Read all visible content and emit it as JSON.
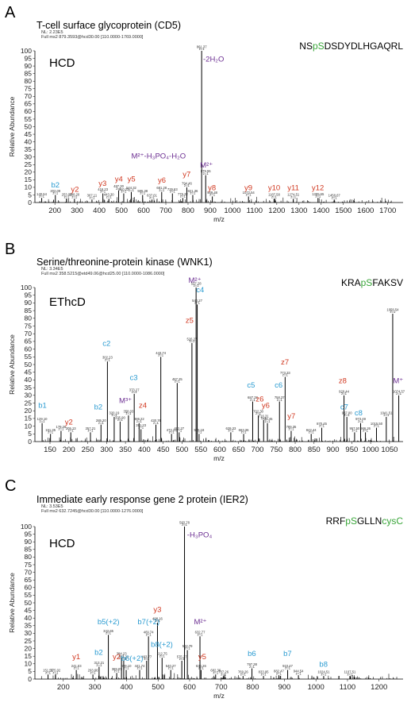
{
  "colors": {
    "b_c_ions": "#2a9bd1",
    "y_z_ions": "#d0361e",
    "precursor": "#6b2d91",
    "phospho": "#3aa63a",
    "seq": "#000000"
  },
  "chart_data": [
    {
      "type": "bar",
      "panel": "A",
      "title": "T-cell surface glycoprotein (CD5)",
      "nl": "NL: 2.23E5",
      "scan": "Full ms2 879.3593@hcd30.00 [110.0000-1769.0000]",
      "method": "HCD",
      "sequence": [
        {
          "t": "NS",
          "c": "seq"
        },
        {
          "t": "pS",
          "c": "phospho"
        },
        {
          "t": "DSDYDLHGAQRL",
          "c": "seq"
        }
      ],
      "xlabel": "m/z",
      "ylabel": "Relative Abundance",
      "xlim": [
        110,
        1769
      ],
      "ylim": [
        0,
        100
      ],
      "xticks": [
        200,
        300,
        400,
        500,
        600,
        700,
        800,
        900,
        1000,
        1100,
        1200,
        1300,
        1400,
        1500,
        1600,
        1700
      ],
      "yticks": [
        0,
        5,
        10,
        15,
        20,
        25,
        30,
        35,
        40,
        45,
        50,
        55,
        60,
        65,
        70,
        75,
        80,
        85,
        90,
        95,
        100
      ],
      "peaks": [
        {
          "x": 140.54,
          "y": 3,
          "label": "140.54"
        },
        {
          "x": 202.09,
          "y": 5,
          "label": "202.09"
        },
        {
          "x": 253.09,
          "y": 2.5,
          "label": "253.09"
        },
        {
          "x": 288.2,
          "y": 2.5,
          "label": "288.20"
        },
        {
          "x": 367.11,
          "y": 2,
          "label": "367.11"
        },
        {
          "x": 416.23,
          "y": 6,
          "label": "416.23"
        },
        {
          "x": 443.3,
          "y": 2.5,
          "label": "443.30"
        },
        {
          "x": 487.3,
          "y": 8,
          "label": "487.30"
        },
        {
          "x": 510.23,
          "y": 6,
          "label": "510.23"
        },
        {
          "x": 544.32,
          "y": 7,
          "label": "544.32"
        },
        {
          "x": 595.38,
          "y": 5,
          "label": "595.38"
        },
        {
          "x": 637.61,
          "y": 2,
          "label": "637.61"
        },
        {
          "x": 681.28,
          "y": 7,
          "label": "681.28"
        },
        {
          "x": 729.63,
          "y": 6,
          "label": "729.63"
        },
        {
          "x": 776.32,
          "y": 3,
          "label": "776.32"
        },
        {
          "x": 794.46,
          "y": 10,
          "label": "794.46"
        },
        {
          "x": 821.36,
          "y": 5,
          "label": "821.36"
        },
        {
          "x": 861.37,
          "y": 100,
          "label": "861.37"
        },
        {
          "x": 879.55,
          "y": 18,
          "label": "879.55"
        },
        {
          "x": 909.48,
          "y": 4,
          "label": "909.48"
        },
        {
          "x": 1072.54,
          "y": 4,
          "label": "1072.54"
        },
        {
          "x": 1187.58,
          "y": 2.5,
          "label": "1187.58"
        },
        {
          "x": 1274.51,
          "y": 2.5,
          "label": "1274.51"
        },
        {
          "x": 1385.65,
          "y": 3,
          "label": "1385.65"
        },
        {
          "x": 1458.67,
          "y": 2,
          "label": "1458.67"
        }
      ],
      "annotations": [
        {
          "t": "b2",
          "x": 202,
          "y": 10,
          "c": "b_c_ions"
        },
        {
          "t": "y2",
          "x": 290,
          "y": 7,
          "c": "y_z_ions"
        },
        {
          "t": "y3",
          "x": 415,
          "y": 11,
          "c": "y_z_ions"
        },
        {
          "t": "y4",
          "x": 488,
          "y": 14,
          "c": "y_z_ions"
        },
        {
          "t": "y5",
          "x": 545,
          "y": 14,
          "c": "y_z_ions"
        },
        {
          "t": "y6",
          "x": 682,
          "y": 13,
          "c": "y_z_ions"
        },
        {
          "t": "y7",
          "x": 794,
          "y": 17,
          "c": "y_z_ions"
        },
        {
          "t": "y8",
          "x": 908,
          "y": 8,
          "c": "y_z_ions"
        },
        {
          "t": "y9",
          "x": 1072,
          "y": 8,
          "c": "y_z_ions"
        },
        {
          "t": "y10",
          "x": 1188,
          "y": 8,
          "c": "y_z_ions"
        },
        {
          "t": "y11",
          "x": 1274,
          "y": 8,
          "c": "y_z_ions"
        },
        {
          "t": "y12",
          "x": 1385,
          "y": 8,
          "c": "y_z_ions"
        },
        {
          "t": "M²⁺",
          "x": 883,
          "y": 23,
          "c": "precursor"
        },
        {
          "t": "M²⁺-H₃PO₄-H₂O",
          "x": 790,
          "y": 29,
          "c": "precursor",
          "anchor": "end"
        },
        {
          "t": "-2H₂O",
          "x": 868,
          "y": 93,
          "c": "precursor",
          "anchor": "start"
        }
      ]
    },
    {
      "type": "bar",
      "panel": "B",
      "title": "Serine/threonine-protein kinase (WNK1)",
      "nl": "NL: 3.34E5",
      "scan": "Full ms2 358.5215@etd49.06@hcd25.00 [110.0000-1086.0000]",
      "method": "EThcD",
      "sequence": [
        {
          "t": "KRA",
          "c": "seq"
        },
        {
          "t": "pS",
          "c": "phospho"
        },
        {
          "t": "FAKSV",
          "c": "seq"
        }
      ],
      "xlabel": "m/z",
      "ylabel": "Relative Abundance",
      "xlim": [
        110,
        1086
      ],
      "ylim": [
        0,
        100
      ],
      "xticks": [
        150,
        200,
        250,
        300,
        350,
        400,
        450,
        500,
        550,
        600,
        650,
        700,
        750,
        800,
        850,
        900,
        950,
        1000,
        1050
      ],
      "yticks": [
        0,
        5,
        10,
        15,
        20,
        25,
        30,
        35,
        40,
        45,
        50,
        55,
        60,
        65,
        70,
        75,
        80,
        85,
        90,
        95,
        100
      ],
      "peaks": [
        {
          "x": 129.1,
          "y": 12,
          "label": "129.10"
        },
        {
          "x": 151.35,
          "y": 5,
          "label": "151.35"
        },
        {
          "x": 179.26,
          "y": 7,
          "label": "179.26"
        },
        {
          "x": 205.13,
          "y": 6,
          "label": "205.13"
        },
        {
          "x": 257.21,
          "y": 6,
          "label": "257.21"
        },
        {
          "x": 285.2,
          "y": 11,
          "label": "285.20"
        },
        {
          "x": 302.23,
          "y": 52,
          "label": "302.23"
        },
        {
          "x": 320.19,
          "y": 16,
          "label": "320.19"
        },
        {
          "x": 335.9,
          "y": 13,
          "label": "335.90"
        },
        {
          "x": 358.03,
          "y": 17,
          "label": "358.03"
        },
        {
          "x": 373.27,
          "y": 31,
          "label": "373.27"
        },
        {
          "x": 386.22,
          "y": 12,
          "label": "386.22"
        },
        {
          "x": 391.23,
          "y": 8,
          "label": "391.23"
        },
        {
          "x": 430.76,
          "y": 11,
          "label": "430.76"
        },
        {
          "x": 443.74,
          "y": 55,
          "label": "443.74"
        },
        {
          "x": 472.23,
          "y": 5,
          "label": "472.23"
        },
        {
          "x": 487.25,
          "y": 38,
          "label": "487.25"
        },
        {
          "x": 492.27,
          "y": 6,
          "label": "492.27"
        },
        {
          "x": 526.27,
          "y": 64,
          "label": "526.27"
        },
        {
          "x": 537.28,
          "y": 100,
          "label": "537.28"
        },
        {
          "x": 540.27,
          "y": 89,
          "label": "540.27"
        },
        {
          "x": 545.18,
          "y": 5,
          "label": "545.18"
        },
        {
          "x": 629.33,
          "y": 6,
          "label": "629.33"
        },
        {
          "x": 663.36,
          "y": 5,
          "label": "663.36"
        },
        {
          "x": 687.33,
          "y": 26,
          "label": "687.33"
        },
        {
          "x": 702.3,
          "y": 17,
          "label": "702.30"
        },
        {
          "x": 716.31,
          "y": 14,
          "label": "716.31"
        },
        {
          "x": 726.45,
          "y": 12,
          "label": "726.45"
        },
        {
          "x": 758.37,
          "y": 26,
          "label": "758.37"
        },
        {
          "x": 773.33,
          "y": 42,
          "label": "773.33"
        },
        {
          "x": 789.35,
          "y": 7,
          "label": "789.35"
        },
        {
          "x": 842.44,
          "y": 5,
          "label": "842.44"
        },
        {
          "x": 870.45,
          "y": 9,
          "label": "870.45"
        },
        {
          "x": 929.44,
          "y": 30,
          "label": "929.44"
        },
        {
          "x": 937.0,
          "y": 16,
          "label": "937.00"
        },
        {
          "x": 957.5,
          "y": 6,
          "label": "957.50"
        },
        {
          "x": 973.49,
          "y": 12,
          "label": "973.49"
        },
        {
          "x": 986.26,
          "y": 6,
          "label": "986.26"
        },
        {
          "x": 1015.5,
          "y": 9,
          "label": "1015.50"
        },
        {
          "x": 1041.51,
          "y": 16,
          "label": "1041.51"
        },
        {
          "x": 1058.54,
          "y": 83,
          "label": "1058.54"
        },
        {
          "x": 1074.57,
          "y": 30,
          "label": "1074.57"
        }
      ],
      "annotations": [
        {
          "t": "b1",
          "x": 130,
          "y": 22,
          "c": "b_c_ions"
        },
        {
          "t": "y2",
          "x": 200,
          "y": 11,
          "c": "y_z_ions"
        },
        {
          "t": "b2",
          "x": 278,
          "y": 21,
          "c": "b_c_ions"
        },
        {
          "t": "c2",
          "x": 300,
          "y": 62,
          "c": "b_c_ions"
        },
        {
          "t": "c3",
          "x": 372,
          "y": 40,
          "c": "b_c_ions"
        },
        {
          "t": "M³⁺",
          "x": 350,
          "y": 25,
          "c": "precursor"
        },
        {
          "t": "z4",
          "x": 396,
          "y": 22,
          "c": "y_z_ions"
        },
        {
          "t": "z5",
          "x": 520,
          "y": 77,
          "c": "y_z_ions"
        },
        {
          "t": "M²⁺",
          "x": 534,
          "y": 103,
          "c": "precursor"
        },
        {
          "t": "c4",
          "x": 548,
          "y": 97,
          "c": "b_c_ions"
        },
        {
          "t": "c5",
          "x": 683,
          "y": 35,
          "c": "b_c_ions"
        },
        {
          "t": "z6",
          "x": 706,
          "y": 26,
          "c": "y_z_ions"
        },
        {
          "t": "y6",
          "x": 722,
          "y": 22,
          "c": "y_z_ions"
        },
        {
          "t": "c6",
          "x": 756,
          "y": 35,
          "c": "b_c_ions"
        },
        {
          "t": "z7",
          "x": 773,
          "y": 50,
          "c": "y_z_ions"
        },
        {
          "t": "y7",
          "x": 790,
          "y": 15,
          "c": "y_z_ions"
        },
        {
          "t": "z8",
          "x": 926,
          "y": 38,
          "c": "y_z_ions"
        },
        {
          "t": "c7",
          "x": 930,
          "y": 21,
          "c": "b_c_ions"
        },
        {
          "t": "c8",
          "x": 968,
          "y": 17,
          "c": "b_c_ions"
        },
        {
          "t": "M⁺",
          "x": 1073,
          "y": 38,
          "c": "precursor"
        }
      ]
    },
    {
      "type": "bar",
      "panel": "C",
      "title": "Immediate early response gene 2 protein (IER2)",
      "nl": "NL: 3.53E5",
      "scan": "Full ms2 632.7245@hcd30.00 [110.0000-1276.0000]",
      "method": "HCD",
      "sequence": [
        {
          "t": "RRF",
          "c": "seq"
        },
        {
          "t": "pS",
          "c": "phospho"
        },
        {
          "t": "GLLN",
          "c": "seq"
        },
        {
          "t": "cysC",
          "c": "phospho"
        }
      ],
      "xlabel": "m/z",
      "ylabel": "Relative Abundance",
      "xlim": [
        110,
        1276
      ],
      "ylim": [
        0,
        100
      ],
      "xticks": [
        200,
        300,
        400,
        500,
        600,
        700,
        800,
        900,
        1000,
        1100,
        1200
      ],
      "yticks": [
        0,
        5,
        10,
        15,
        20,
        25,
        30,
        35,
        40,
        45,
        50,
        55,
        60,
        65,
        70,
        75,
        80,
        85,
        90,
        95,
        100
      ],
      "peaks": [
        {
          "x": 151.55,
          "y": 3,
          "label": "151.55"
        },
        {
          "x": 175.02,
          "y": 3,
          "label": "175.02"
        },
        {
          "x": 241.03,
          "y": 6,
          "label": "241.03"
        },
        {
          "x": 293.66,
          "y": 3,
          "label": "293.66"
        },
        {
          "x": 313.21,
          "y": 8,
          "label": "313.21"
        },
        {
          "x": 342.65,
          "y": 29,
          "label": "342.65"
        },
        {
          "x": 369.07,
          "y": 4,
          "label": "369.07"
        },
        {
          "x": 384.23,
          "y": 14,
          "label": "384.23"
        },
        {
          "x": 391.2,
          "y": 12,
          "label": "391.20"
        },
        {
          "x": 399.1,
          "y": 6,
          "label": "399.10"
        },
        {
          "x": 441.74,
          "y": 6,
          "label": "441.74"
        },
        {
          "x": 463.77,
          "y": 12,
          "label": "463.77"
        },
        {
          "x": 469.74,
          "y": 28,
          "label": "469.74"
        },
        {
          "x": 498.16,
          "y": 37,
          "label": "498.16"
        },
        {
          "x": 512.75,
          "y": 14,
          "label": "512.75"
        },
        {
          "x": 540.27,
          "y": 6,
          "label": "540.27"
        },
        {
          "x": 575.27,
          "y": 12,
          "label": "575.27"
        },
        {
          "x": 583.78,
          "y": 100,
          "label": "583.78"
        },
        {
          "x": 592.79,
          "y": 19,
          "label": "592.79"
        },
        {
          "x": 632.77,
          "y": 28,
          "label": "632.77"
        },
        {
          "x": 636.26,
          "y": 6,
          "label": "636.26"
        },
        {
          "x": 682.36,
          "y": 3,
          "label": "682.36"
        },
        {
          "x": 707.26,
          "y": 2,
          "label": "707.26"
        },
        {
          "x": 769.26,
          "y": 2,
          "label": "769.26"
        },
        {
          "x": 797.38,
          "y": 7,
          "label": "797.38"
        },
        {
          "x": 833.95,
          "y": 2,
          "label": "833.95"
        },
        {
          "x": 882.47,
          "y": 2.5,
          "label": "882.47"
        },
        {
          "x": 910.47,
          "y": 6,
          "label": "910.47"
        },
        {
          "x": 944.54,
          "y": 2.5,
          "label": "944.54"
        },
        {
          "x": 1024.51,
          "y": 2,
          "label": "1024.51"
        },
        {
          "x": 1107.51,
          "y": 2,
          "label": "1107.51"
        }
      ],
      "annotations": [
        {
          "t": "y1",
          "x": 241,
          "y": 13,
          "c": "y_z_ions"
        },
        {
          "t": "b2",
          "x": 312,
          "y": 16,
          "c": "b_c_ions"
        },
        {
          "t": "b5(+2)",
          "x": 343,
          "y": 36,
          "c": "b_c_ions"
        },
        {
          "t": "y2",
          "x": 369,
          "y": 13,
          "c": "y_z_ions"
        },
        {
          "t": "b6(+2)",
          "x": 418,
          "y": 12,
          "c": "b_c_ions"
        },
        {
          "t": "b7(+2)",
          "x": 470,
          "y": 36,
          "c": "b_c_ions"
        },
        {
          "t": "y3",
          "x": 498,
          "y": 44,
          "c": "y_z_ions"
        },
        {
          "t": "b8(+2)",
          "x": 512,
          "y": 21,
          "c": "b_c_ions"
        },
        {
          "t": "M²⁺",
          "x": 634,
          "y": 36,
          "c": "precursor"
        },
        {
          "t": "y5",
          "x": 640,
          "y": 13,
          "c": "y_z_ions"
        },
        {
          "t": "b6",
          "x": 797,
          "y": 15,
          "c": "b_c_ions"
        },
        {
          "t": "b7",
          "x": 910,
          "y": 15,
          "c": "b_c_ions"
        },
        {
          "t": "b8",
          "x": 1024,
          "y": 8,
          "c": "b_c_ions"
        },
        {
          "t": "-H₃PO₄",
          "x": 592,
          "y": 93,
          "c": "precursor",
          "anchor": "start"
        }
      ]
    }
  ]
}
